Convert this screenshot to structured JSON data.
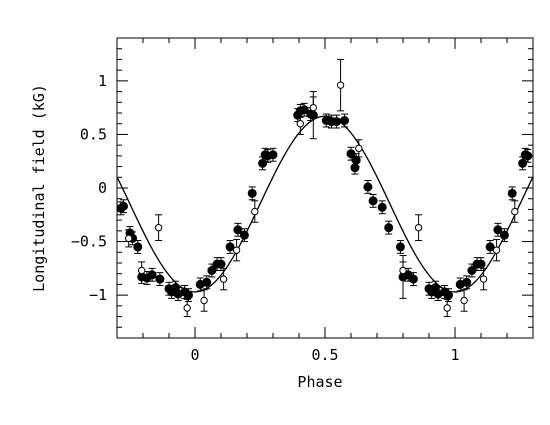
{
  "chart_data": {
    "type": "scatter",
    "xlabel": "Phase",
    "ylabel": "Longitudinal field (kG)",
    "xlim": [
      -0.3,
      1.3
    ],
    "ylim": [
      -1.4,
      1.4
    ],
    "x_ticks": [
      0,
      0.5,
      1
    ],
    "x_tick_labels": [
      "0",
      "0.5",
      "1"
    ],
    "y_ticks": [
      -1,
      -0.5,
      0,
      0.5,
      1
    ],
    "y_tick_labels": [
      "−1",
      "−0.5",
      "0",
      "0.5",
      "1"
    ],
    "grid": false,
    "legend": "none",
    "mark_color": "#000000",
    "model_curve": {
      "mean": -0.15,
      "amplitude": 0.82,
      "peak_phase": 0.5,
      "period": 1.0
    },
    "series": [
      {
        "marker": "filled-circle",
        "points": [
          {
            "x": -0.285,
            "y": -0.19,
            "err": 0.06
          },
          {
            "x": -0.275,
            "y": -0.17,
            "err": 0.06
          },
          {
            "x": -0.25,
            "y": -0.42,
            "err": 0.06
          },
          {
            "x": -0.24,
            "y": -0.47,
            "err": 0.06
          },
          {
            "x": -0.22,
            "y": -0.55,
            "err": 0.06
          },
          {
            "x": -0.205,
            "y": -0.83,
            "err": 0.06
          },
          {
            "x": -0.185,
            "y": -0.84,
            "err": 0.06
          },
          {
            "x": -0.165,
            "y": -0.81,
            "err": 0.06
          },
          {
            "x": -0.135,
            "y": -0.85,
            "err": 0.06
          },
          {
            "x": -0.1,
            "y": -0.94,
            "err": 0.06
          },
          {
            "x": -0.09,
            "y": -0.97,
            "err": 0.06
          },
          {
            "x": -0.075,
            "y": -0.93,
            "err": 0.06
          },
          {
            "x": -0.065,
            "y": -0.99,
            "err": 0.06
          },
          {
            "x": -0.04,
            "y": -0.97,
            "err": 0.06
          },
          {
            "x": -0.025,
            "y": -1.0,
            "err": 0.06
          },
          {
            "x": 0.02,
            "y": -0.9,
            "err": 0.06
          },
          {
            "x": 0.045,
            "y": -0.88,
            "err": 0.06
          },
          {
            "x": 0.065,
            "y": -0.77,
            "err": 0.06
          },
          {
            "x": 0.085,
            "y": -0.71,
            "err": 0.06
          },
          {
            "x": 0.1,
            "y": -0.71,
            "err": 0.06
          },
          {
            "x": 0.135,
            "y": -0.55,
            "err": 0.06
          },
          {
            "x": 0.165,
            "y": -0.39,
            "err": 0.06
          },
          {
            "x": 0.19,
            "y": -0.44,
            "err": 0.06
          },
          {
            "x": 0.22,
            "y": -0.05,
            "err": 0.06
          },
          {
            "x": 0.26,
            "y": 0.23,
            "err": 0.06
          },
          {
            "x": 0.27,
            "y": 0.31,
            "err": 0.06
          },
          {
            "x": 0.28,
            "y": 0.3,
            "err": 0.06
          },
          {
            "x": 0.3,
            "y": 0.31,
            "err": 0.06
          },
          {
            "x": 0.395,
            "y": 0.68,
            "err": 0.06
          },
          {
            "x": 0.405,
            "y": 0.72,
            "err": 0.06
          },
          {
            "x": 0.42,
            "y": 0.73,
            "err": 0.06
          },
          {
            "x": 0.445,
            "y": 0.69,
            "err": 0.06
          },
          {
            "x": 0.455,
            "y": 0.68,
            "err": 0.22
          },
          {
            "x": 0.505,
            "y": 0.63,
            "err": 0.06
          },
          {
            "x": 0.525,
            "y": 0.62,
            "err": 0.06
          },
          {
            "x": 0.545,
            "y": 0.62,
            "err": 0.06
          },
          {
            "x": 0.575,
            "y": 0.63,
            "err": 0.06
          },
          {
            "x": 0.6,
            "y": 0.32,
            "err": 0.06
          },
          {
            "x": 0.615,
            "y": 0.19,
            "err": 0.06
          },
          {
            "x": 0.62,
            "y": 0.26,
            "err": 0.06
          },
          {
            "x": 0.665,
            "y": 0.01,
            "err": 0.06
          },
          {
            "x": 0.685,
            "y": -0.12,
            "err": 0.06
          },
          {
            "x": 0.72,
            "y": -0.18,
            "err": 0.06
          },
          {
            "x": 0.745,
            "y": -0.37,
            "err": 0.06
          },
          {
            "x": 0.79,
            "y": -0.55,
            "err": 0.06
          },
          {
            "x": 0.8,
            "y": -0.83,
            "err": 0.2
          },
          {
            "x": 0.82,
            "y": -0.81,
            "err": 0.06
          },
          {
            "x": 0.84,
            "y": -0.85,
            "err": 0.06
          },
          {
            "x": 0.9,
            "y": -0.94,
            "err": 0.06
          },
          {
            "x": 0.91,
            "y": -0.97,
            "err": 0.06
          },
          {
            "x": 0.925,
            "y": -0.93,
            "err": 0.06
          },
          {
            "x": 0.935,
            "y": -0.99,
            "err": 0.06
          },
          {
            "x": 0.96,
            "y": -0.97,
            "err": 0.06
          },
          {
            "x": 0.975,
            "y": -1.0,
            "err": 0.06
          },
          {
            "x": 1.02,
            "y": -0.9,
            "err": 0.06
          },
          {
            "x": 1.045,
            "y": -0.88,
            "err": 0.06
          },
          {
            "x": 1.065,
            "y": -0.77,
            "err": 0.06
          },
          {
            "x": 1.085,
            "y": -0.71,
            "err": 0.06
          },
          {
            "x": 1.1,
            "y": -0.71,
            "err": 0.06
          },
          {
            "x": 1.135,
            "y": -0.55,
            "err": 0.06
          },
          {
            "x": 1.165,
            "y": -0.39,
            "err": 0.06
          },
          {
            "x": 1.19,
            "y": -0.44,
            "err": 0.06
          },
          {
            "x": 1.22,
            "y": -0.05,
            "err": 0.06
          },
          {
            "x": 1.26,
            "y": 0.23,
            "err": 0.06
          },
          {
            "x": 1.27,
            "y": 0.31,
            "err": 0.06
          },
          {
            "x": 1.28,
            "y": 0.3,
            "err": 0.06
          }
        ]
      },
      {
        "marker": "open-circle",
        "points": [
          {
            "x": -0.255,
            "y": -0.47,
            "err": 0.08
          },
          {
            "x": -0.205,
            "y": -0.77,
            "err": 0.08
          },
          {
            "x": -0.14,
            "y": -0.37,
            "err": 0.12
          },
          {
            "x": -0.03,
            "y": -1.12,
            "err": 0.08
          },
          {
            "x": 0.035,
            "y": -1.05,
            "err": 0.1
          },
          {
            "x": 0.11,
            "y": -0.85,
            "err": 0.1
          },
          {
            "x": 0.16,
            "y": -0.58,
            "err": 0.1
          },
          {
            "x": 0.23,
            "y": -0.22,
            "err": 0.1
          },
          {
            "x": 0.405,
            "y": 0.6,
            "err": 0.1
          },
          {
            "x": 0.455,
            "y": 0.75,
            "err": 0.1
          },
          {
            "x": 0.56,
            "y": 0.96,
            "err": 0.24
          },
          {
            "x": 0.63,
            "y": 0.37,
            "err": 0.08
          },
          {
            "x": 0.8,
            "y": -0.77,
            "err": 0.08
          },
          {
            "x": 0.86,
            "y": -0.37,
            "err": 0.12
          },
          {
            "x": 0.97,
            "y": -1.12,
            "err": 0.08
          },
          {
            "x": 1.035,
            "y": -1.05,
            "err": 0.1
          },
          {
            "x": 1.11,
            "y": -0.85,
            "err": 0.1
          },
          {
            "x": 1.16,
            "y": -0.58,
            "err": 0.1
          },
          {
            "x": 1.23,
            "y": -0.22,
            "err": 0.1
          }
        ]
      }
    ]
  }
}
